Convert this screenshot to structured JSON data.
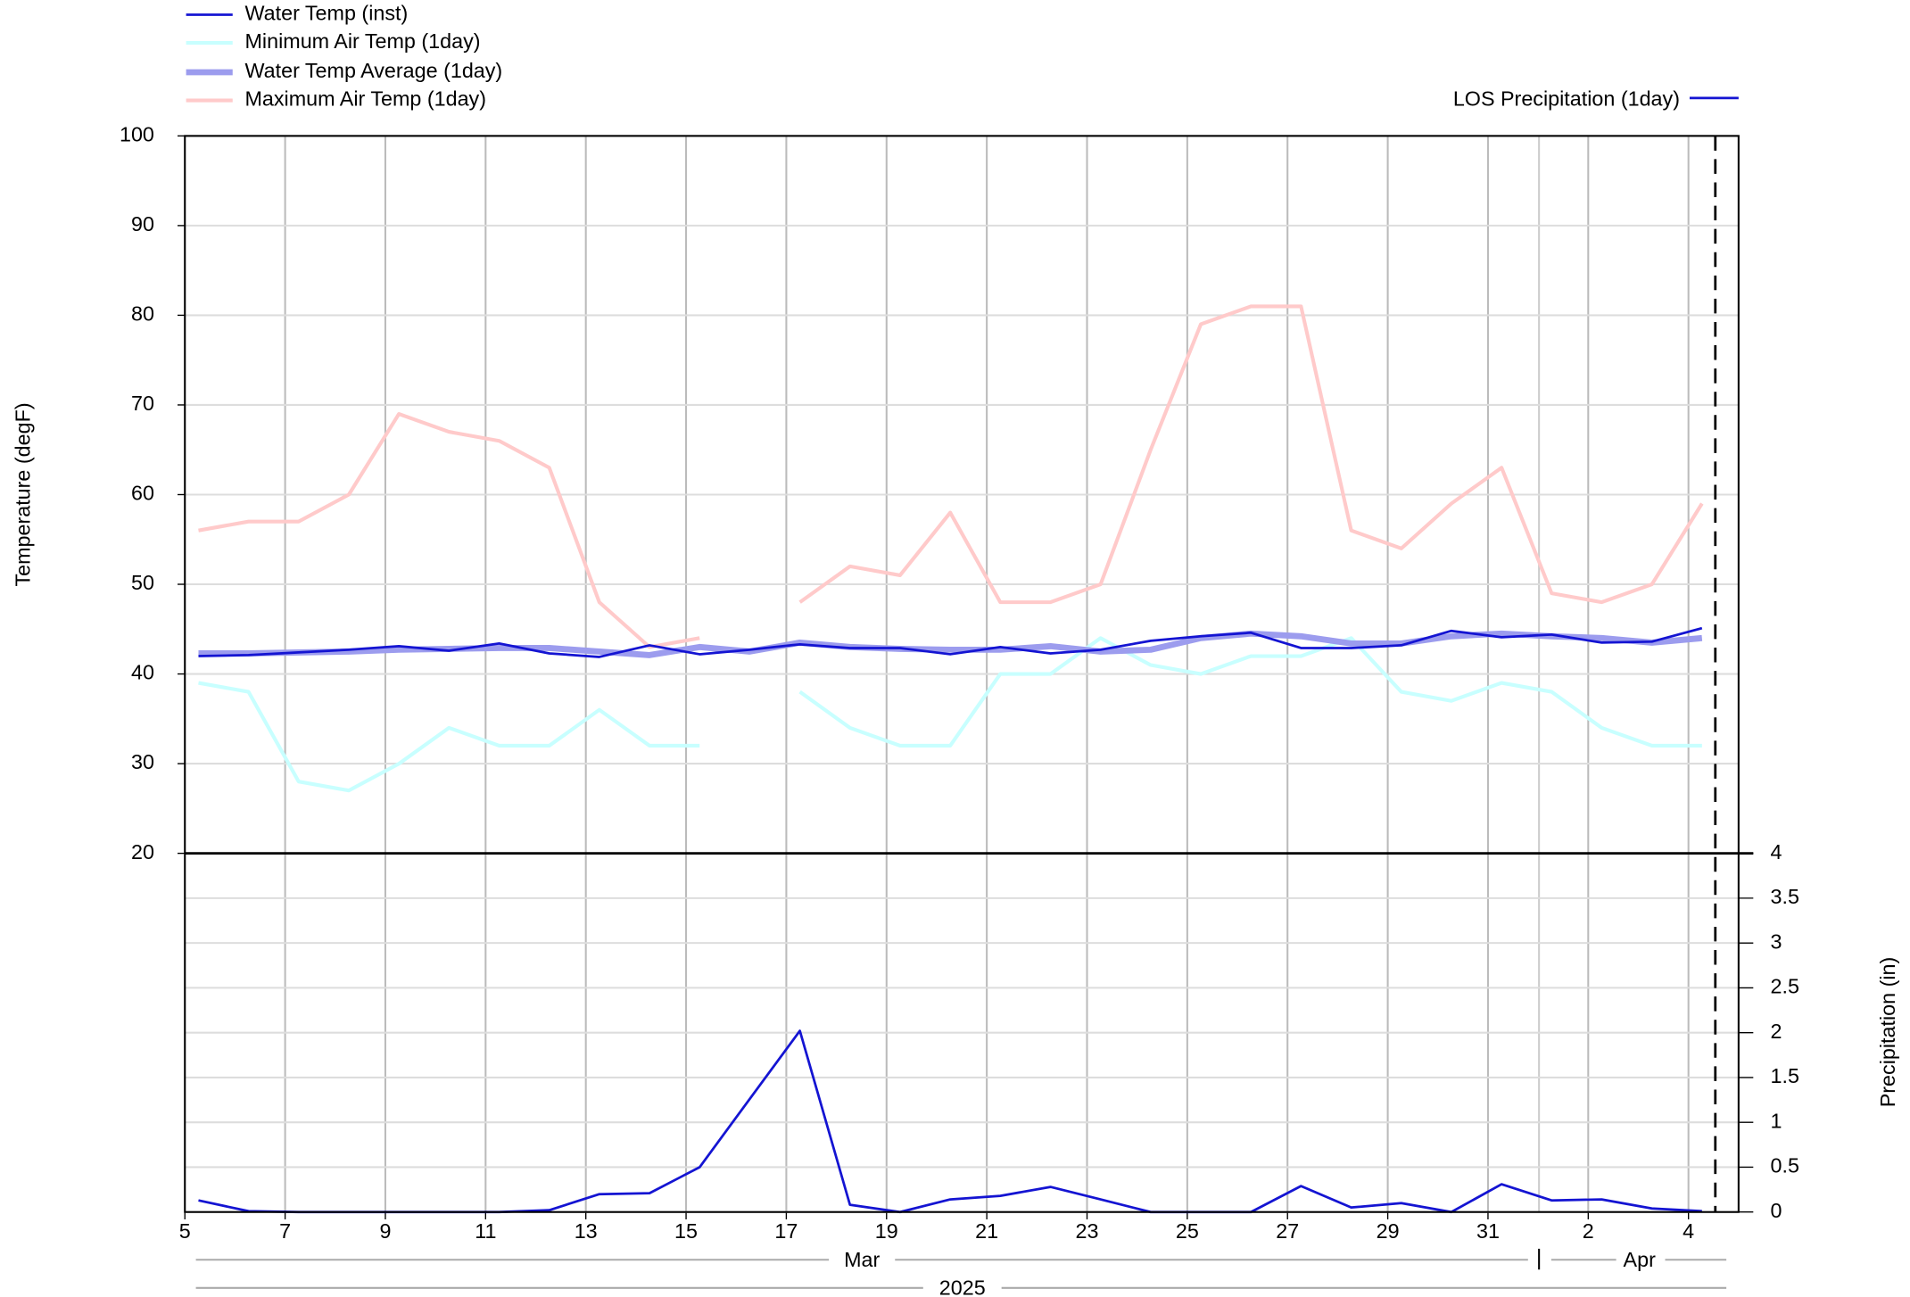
{
  "chart_data": [
    {
      "type": "line",
      "ylabel": "Temperature (degF)",
      "x": [
        "2025-03-05",
        "2025-03-06",
        "2025-03-07",
        "2025-03-08",
        "2025-03-09",
        "2025-03-10",
        "2025-03-11",
        "2025-03-12",
        "2025-03-13",
        "2025-03-14",
        "2025-03-15",
        "2025-03-16",
        "2025-03-17",
        "2025-03-18",
        "2025-03-19",
        "2025-03-20",
        "2025-03-21",
        "2025-03-22",
        "2025-03-23",
        "2025-03-24",
        "2025-03-25",
        "2025-03-26",
        "2025-03-27",
        "2025-03-28",
        "2025-03-29",
        "2025-03-30",
        "2025-03-31",
        "2025-04-01",
        "2025-04-02",
        "2025-04-03",
        "2025-04-04"
      ],
      "ylim": [
        20,
        100
      ],
      "yticks": [
        20,
        30,
        40,
        50,
        60,
        70,
        80,
        90,
        100
      ],
      "grid": true,
      "series": [
        {
          "name": "Water Temp (inst)",
          "color": "#1414d2",
          "width": 2,
          "values": [
            42,
            42.1,
            42.4,
            42.7,
            43.1,
            42.6,
            43.4,
            42.3,
            41.9,
            43.2,
            42.2,
            42.7,
            43.3,
            42.9,
            42.9,
            42.2,
            43.0,
            42.3,
            42.7,
            43.7,
            44.2,
            44.6,
            42.9,
            42.9,
            43.2,
            44.8,
            44.1,
            44.4,
            43.5,
            43.6,
            45.1
          ]
        },
        {
          "name": "Minimum Air Temp (1day)",
          "color": "#c8ffff",
          "width": 3,
          "values": [
            39,
            38,
            28,
            27,
            30,
            34,
            32,
            32,
            36,
            32,
            32,
            null,
            38,
            34,
            32,
            32,
            40,
            40,
            44,
            41,
            40,
            42,
            42,
            44,
            38,
            37,
            39,
            38,
            34,
            32,
            32
          ]
        },
        {
          "name": "Water Temp Average (1day)",
          "color": "#9c9cee",
          "width": 5,
          "values": [
            42.3,
            42.3,
            42.4,
            42.5,
            42.7,
            42.8,
            42.9,
            42.9,
            42.5,
            42.1,
            43.0,
            42.5,
            43.5,
            43.0,
            42.8,
            42.7,
            42.7,
            43.1,
            42.5,
            42.7,
            44.0,
            44.5,
            44.2,
            43.4,
            43.4,
            44.2,
            44.5,
            44.2,
            44.0,
            43.5,
            44.0
          ]
        },
        {
          "name": "Maximum Air Temp (1day)",
          "color": "#ffcaca",
          "width": 3,
          "values": [
            56,
            57,
            57,
            60,
            69,
            67,
            66,
            63,
            48,
            43,
            44,
            null,
            48,
            52,
            51,
            58,
            48,
            48,
            50,
            65,
            79,
            81,
            81,
            56,
            54,
            59,
            63,
            49,
            48,
            50,
            59
          ]
        }
      ]
    },
    {
      "type": "line",
      "ylabel": "Precipitation (in)",
      "x": [
        "2025-03-05",
        "2025-03-06",
        "2025-03-07",
        "2025-03-08",
        "2025-03-09",
        "2025-03-10",
        "2025-03-11",
        "2025-03-12",
        "2025-03-13",
        "2025-03-14",
        "2025-03-15",
        "2025-03-16",
        "2025-03-17",
        "2025-03-18",
        "2025-03-19",
        "2025-03-20",
        "2025-03-21",
        "2025-03-22",
        "2025-03-23",
        "2025-03-24",
        "2025-03-25",
        "2025-03-26",
        "2025-03-27",
        "2025-03-28",
        "2025-03-29",
        "2025-03-30",
        "2025-03-31",
        "2025-04-01",
        "2025-04-02",
        "2025-04-03",
        "2025-04-04"
      ],
      "xlim": [
        "2025-03-05",
        "2025-04-05"
      ],
      "xticks": [
        {
          "value": "2025-03-05",
          "label": "5"
        },
        {
          "value": "2025-03-07",
          "label": "7"
        },
        {
          "value": "2025-03-09",
          "label": "9"
        },
        {
          "value": "2025-03-11",
          "label": "11"
        },
        {
          "value": "2025-03-13",
          "label": "13"
        },
        {
          "value": "2025-03-15",
          "label": "15"
        },
        {
          "value": "2025-03-17",
          "label": "17"
        },
        {
          "value": "2025-03-19",
          "label": "19"
        },
        {
          "value": "2025-03-21",
          "label": "21"
        },
        {
          "value": "2025-03-23",
          "label": "23"
        },
        {
          "value": "2025-03-25",
          "label": "25"
        },
        {
          "value": "2025-03-27",
          "label": "27"
        },
        {
          "value": "2025-03-29",
          "label": "29"
        },
        {
          "value": "2025-03-31",
          "label": "31"
        },
        {
          "value": "2025-04-02",
          "label": "2"
        },
        {
          "value": "2025-04-04",
          "label": "4"
        }
      ],
      "months": [
        "Mar",
        "Apr"
      ],
      "year": "2025",
      "ylim": [
        0,
        4
      ],
      "yticks": [
        0,
        0.5,
        1,
        1.5,
        2,
        2.5,
        3,
        3.5,
        4
      ],
      "grid": true,
      "series": [
        {
          "name": "LOS Precipitation (1day)",
          "color": "#1414d2",
          "width": 2,
          "axis": "y2",
          "values": [
            0.13,
            0.01,
            0,
            0,
            0,
            0,
            0,
            0.02,
            0.2,
            0.21,
            0.5,
            1.26,
            2.02,
            0.08,
            0,
            0.14,
            0.18,
            0.28,
            0.14,
            0,
            0,
            0,
            0.29,
            0.05,
            0.1,
            0,
            0.31,
            0.13,
            0.14,
            0.04,
            0.01
          ]
        }
      ]
    }
  ]
}
